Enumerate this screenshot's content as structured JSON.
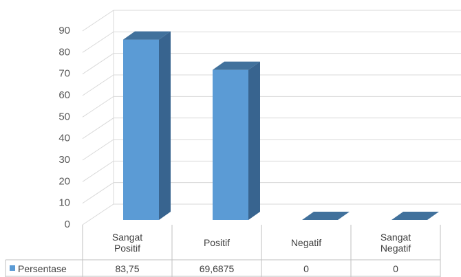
{
  "chart_data": {
    "type": "bar3d",
    "categories": [
      "Sangat Positif",
      "Positif",
      "Negatif",
      "Sangat Negatif"
    ],
    "series": [
      {
        "name": "Persentase",
        "color": "#5b9bd5",
        "values": [
          83.75,
          69.6875,
          0,
          0
        ],
        "value_labels": [
          "83,75",
          "69,6875",
          "0",
          "0"
        ]
      }
    ],
    "ylim": [
      0,
      90
    ],
    "yticks": [
      0,
      10,
      20,
      30,
      40,
      50,
      60,
      70,
      80,
      90
    ],
    "grid": true
  }
}
